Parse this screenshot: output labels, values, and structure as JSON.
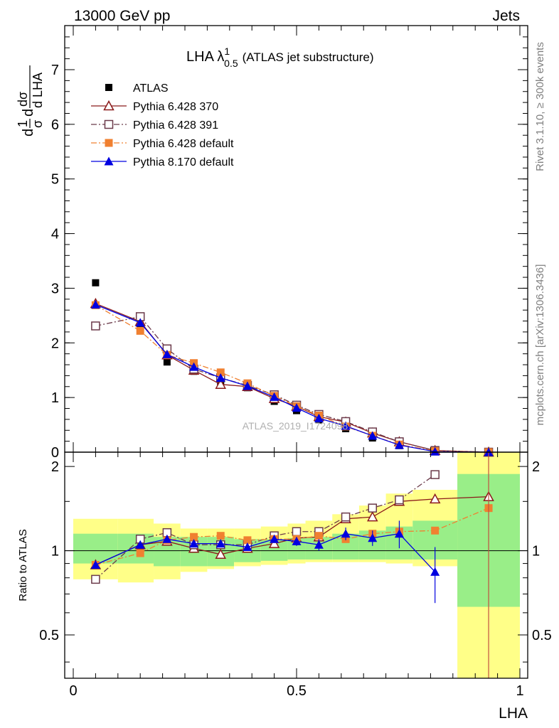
{
  "header": {
    "left": "13000 GeV pp",
    "right": "Jets"
  },
  "side": {
    "rivet": "Rivet 3.1.10, ≥ 300k events",
    "mcplots": "mcplots.cern.ch [arXiv:1306.3436]"
  },
  "watermark": "ATLAS_2019_I1724098",
  "chart_data": [
    {
      "type": "scatter",
      "title": "LHA λ",
      "title_sup": "1",
      "title_sub": "0.5",
      "title_suffix": "(ATLAS jet substructure)",
      "xlabel": "LHA",
      "ylabel": "1/σ dσ/d LHA",
      "xlim": [
        0,
        1
      ],
      "ylim": [
        0,
        7.8
      ],
      "yticks": [
        0,
        1,
        2,
        3,
        4,
        5,
        6,
        7
      ],
      "legend_position": "top-left",
      "series": [
        {
          "name": "ATLAS",
          "color": "#000000",
          "marker": "filled-square",
          "line": "none",
          "x": [
            0.05,
            0.15,
            0.21,
            0.27,
            0.33,
            0.39,
            0.45,
            0.5,
            0.55,
            0.61,
            0.67,
            0.73,
            0.81,
            0.93
          ],
          "y": [
            3.1,
            2.27,
            1.65,
            1.48,
            1.29,
            1.18,
            0.93,
            0.76,
            0.59,
            0.43,
            0.26,
            0.12,
            0.02,
            0.0
          ]
        },
        {
          "name": "Pythia 6.428 370",
          "color": "#8b1a1a",
          "marker": "open-triangle",
          "line": "solid",
          "x": [
            0.05,
            0.15,
            0.21,
            0.27,
            0.33,
            0.39,
            0.45,
            0.5,
            0.55,
            0.61,
            0.67,
            0.73,
            0.81,
            0.93
          ],
          "y": [
            2.72,
            2.39,
            1.78,
            1.5,
            1.24,
            1.2,
            0.98,
            0.84,
            0.65,
            0.55,
            0.35,
            0.19,
            0.03,
            0.0
          ]
        },
        {
          "name": "Pythia 6.428 391",
          "color": "#6b3a4a",
          "marker": "open-square",
          "line": "dashdot",
          "x": [
            0.05,
            0.15,
            0.21,
            0.27,
            0.33,
            0.39,
            0.45,
            0.5,
            0.55,
            0.61,
            0.67,
            0.73,
            0.81,
            0.93
          ],
          "y": [
            2.31,
            2.48,
            1.89,
            1.52,
            1.36,
            1.22,
            1.05,
            0.86,
            0.69,
            0.56,
            0.37,
            0.19,
            0.03,
            0.0
          ]
        },
        {
          "name": "Pythia 6.428 default",
          "color": "#f08030",
          "marker": "filled-square",
          "line": "dashdot",
          "x": [
            0.05,
            0.15,
            0.21,
            0.27,
            0.33,
            0.39,
            0.45,
            0.5,
            0.55,
            0.61,
            0.67,
            0.73,
            0.81,
            0.93
          ],
          "y": [
            2.69,
            2.22,
            1.78,
            1.63,
            1.46,
            1.26,
            1.03,
            0.84,
            0.67,
            0.47,
            0.3,
            0.14,
            0.02,
            0.0
          ]
        },
        {
          "name": "Pythia 8.170 default",
          "color": "#0000e0",
          "marker": "filled-triangle",
          "line": "solid",
          "x": [
            0.05,
            0.15,
            0.21,
            0.27,
            0.33,
            0.39,
            0.45,
            0.5,
            0.55,
            0.61,
            0.67,
            0.73,
            0.81,
            0.93
          ],
          "y": [
            2.7,
            2.37,
            1.79,
            1.56,
            1.36,
            1.21,
            1.01,
            0.81,
            0.62,
            0.48,
            0.3,
            0.13,
            0.01,
            0.0
          ]
        }
      ]
    },
    {
      "type": "scatter",
      "ylabel": "Ratio to ATLAS",
      "xlabel": "LHA",
      "xlim": [
        0,
        1
      ],
      "ylim": [
        0.35,
        2.25
      ],
      "ylog": true,
      "yticks": [
        0.5,
        1,
        2
      ],
      "reference_line": 1,
      "bands": {
        "x_edges": [
          0,
          0.1,
          0.18,
          0.24,
          0.3,
          0.36,
          0.42,
          0.48,
          0.52,
          0.58,
          0.64,
          0.7,
          0.76,
          0.86,
          1.0
        ],
        "green_low": [
          0.9,
          0.9,
          0.88,
          0.88,
          0.88,
          0.91,
          0.92,
          0.93,
          0.93,
          0.93,
          0.93,
          0.93,
          0.93,
          0.63
        ],
        "green_high": [
          1.15,
          1.15,
          1.12,
          1.12,
          1.12,
          1.1,
          1.1,
          1.11,
          1.12,
          1.15,
          1.18,
          1.22,
          1.28,
          1.88
        ],
        "yellow_low": [
          0.79,
          0.77,
          0.79,
          0.84,
          0.86,
          0.88,
          0.89,
          0.9,
          0.91,
          0.91,
          0.91,
          0.9,
          0.88,
          0.35
        ],
        "yellow_high": [
          1.3,
          1.3,
          1.25,
          1.2,
          1.2,
          1.2,
          1.22,
          1.25,
          1.28,
          1.35,
          1.45,
          1.6,
          1.65,
          2.25
        ],
        "green_color": "#99ee88",
        "yellow_color": "#ffff88"
      },
      "series": [
        {
          "name": "Pythia 6.428 370",
          "color": "#8b1a1a",
          "marker": "open-triangle",
          "line": "solid",
          "x": [
            0.05,
            0.15,
            0.21,
            0.27,
            0.33,
            0.39,
            0.45,
            0.5,
            0.55,
            0.61,
            0.67,
            0.73,
            0.81,
            0.93
          ],
          "y": [
            0.89,
            1.05,
            1.08,
            1.02,
            0.97,
            1.02,
            1.06,
            1.11,
            1.12,
            1.3,
            1.32,
            1.5,
            1.53,
            1.56
          ]
        },
        {
          "name": "Pythia 6.428 391",
          "color": "#6b3a4a",
          "marker": "open-square",
          "line": "dashdot",
          "x": [
            0.05,
            0.15,
            0.21,
            0.27,
            0.33,
            0.39,
            0.45,
            0.5,
            0.55,
            0.61,
            0.67,
            0.73,
            0.81
          ],
          "y": [
            0.79,
            1.1,
            1.16,
            1.05,
            1.05,
            1.05,
            1.13,
            1.17,
            1.17,
            1.32,
            1.42,
            1.52,
            1.87
          ]
        },
        {
          "name": "Pythia 6.428 default",
          "color": "#f08030",
          "marker": "filled-square",
          "line": "dashdot",
          "x": [
            0.05,
            0.15,
            0.21,
            0.27,
            0.33,
            0.39,
            0.45,
            0.5,
            0.55,
            0.61,
            0.67,
            0.73,
            0.81,
            0.93
          ],
          "y": [
            0.89,
            0.98,
            1.09,
            1.12,
            1.13,
            1.09,
            1.1,
            1.1,
            1.13,
            1.1,
            1.15,
            1.17,
            1.18,
            1.42
          ]
        },
        {
          "name": "Pythia 8.170 default",
          "color": "#0000e0",
          "marker": "filled-triangle",
          "line": "solid",
          "x": [
            0.05,
            0.15,
            0.21,
            0.27,
            0.33,
            0.39,
            0.45,
            0.5,
            0.55,
            0.61,
            0.67,
            0.73,
            0.81
          ],
          "y": [
            0.89,
            1.05,
            1.1,
            1.06,
            1.06,
            1.03,
            1.1,
            1.08,
            1.05,
            1.15,
            1.11,
            1.15,
            0.84
          ],
          "yerr": [
            0.02,
            0.02,
            0.02,
            0.02,
            0.02,
            0.02,
            0.03,
            0.04,
            0.05,
            0.06,
            0.07,
            0.13,
            0.19
          ]
        }
      ]
    }
  ]
}
